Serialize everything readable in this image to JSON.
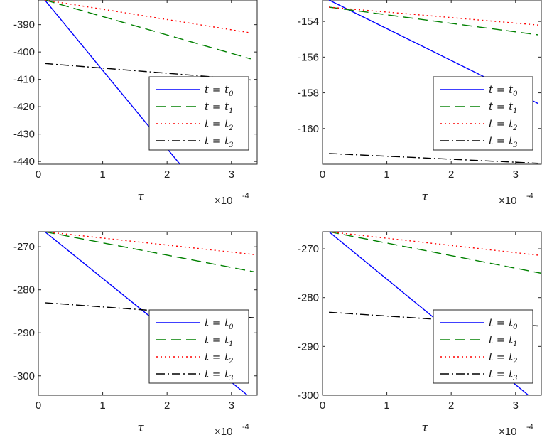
{
  "chart_data": [
    {
      "type": "line",
      "xlabel": "τ",
      "x_multiplier": "×10",
      "x_multiplier_exp": "-4",
      "xlim": [
        0,
        3.4
      ],
      "ylim": [
        -441,
        -381
      ],
      "xticks": [
        "0",
        "1",
        "2",
        "3"
      ],
      "yticks": [
        "-390",
        "-400",
        "-410",
        "-420",
        "-430",
        "-440"
      ],
      "legend_position": "lower-right",
      "series": [
        {
          "name": "t = t0",
          "base": "t = t",
          "sub": "0",
          "color": "#0000ff",
          "dash": "none",
          "x": [
            0.1,
            2.2
          ],
          "y": [
            -381,
            -441
          ]
        },
        {
          "name": "t = t1",
          "base": "t = t",
          "sub": "1",
          "color": "#008000",
          "dash": "14,7",
          "x": [
            0.1,
            3.3
          ],
          "y": [
            -381,
            -402.5
          ]
        },
        {
          "name": "t = t2",
          "base": "t = t",
          "sub": "2",
          "color": "#ff0000",
          "dash": "2,4",
          "x": [
            0.1,
            3.3
          ],
          "y": [
            -381,
            -393
          ]
        },
        {
          "name": "t = t3",
          "base": "t = t",
          "sub": "3",
          "color": "#000000",
          "dash": "12,4,2,4",
          "x": [
            0.1,
            3.3
          ],
          "y": [
            -404.2,
            -410.2
          ]
        }
      ]
    },
    {
      "type": "line",
      "xlabel": "τ",
      "x_multiplier": "×10",
      "x_multiplier_exp": "-4",
      "xlim": [
        0,
        3.4
      ],
      "ylim": [
        -162,
        -152.8
      ],
      "xticks": [
        "0",
        "1",
        "2",
        "3"
      ],
      "yticks": [
        "-154",
        "-156",
        "-158",
        "-160"
      ],
      "legend_position": "lower-right",
      "series": [
        {
          "name": "t = t0",
          "base": "t = t",
          "sub": "0",
          "color": "#0000ff",
          "dash": "none",
          "x": [
            0.1,
            3.35
          ],
          "y": [
            -152.8,
            -158.6
          ]
        },
        {
          "name": "t = t1",
          "base": "t = t",
          "sub": "1",
          "color": "#008000",
          "dash": "14,7",
          "x": [
            0.1,
            3.35
          ],
          "y": [
            -153.2,
            -154.75
          ]
        },
        {
          "name": "t = t2",
          "base": "t = t",
          "sub": "2",
          "color": "#ff0000",
          "dash": "2,4",
          "x": [
            0.1,
            3.35
          ],
          "y": [
            -153.2,
            -154.2
          ]
        },
        {
          "name": "t = t3",
          "base": "t = t",
          "sub": "3",
          "color": "#000000",
          "dash": "12,4,2,4",
          "x": [
            0.1,
            3.35
          ],
          "y": [
            -161.4,
            -161.95
          ]
        }
      ]
    },
    {
      "type": "line",
      "xlabel": "τ",
      "x_multiplier": "×10",
      "x_multiplier_exp": "-4",
      "xlim": [
        0,
        3.4
      ],
      "ylim": [
        -304.5,
        -266.5
      ],
      "xticks": [
        "0",
        "1",
        "2",
        "3"
      ],
      "yticks": [
        "-270",
        "-280",
        "-290",
        "-300"
      ],
      "legend_position": "lower-right",
      "series": [
        {
          "name": "t = t0",
          "base": "t = t",
          "sub": "0",
          "color": "#0000ff",
          "dash": "none",
          "x": [
            0.1,
            3.25
          ],
          "y": [
            -266.5,
            -304.5
          ]
        },
        {
          "name": "t = t1",
          "base": "t = t",
          "sub": "1",
          "color": "#008000",
          "dash": "14,7",
          "x": [
            0.1,
            3.35
          ],
          "y": [
            -266.5,
            -275.8
          ]
        },
        {
          "name": "t = t2",
          "base": "t = t",
          "sub": "2",
          "color": "#ff0000",
          "dash": "2,4",
          "x": [
            0.1,
            3.35
          ],
          "y": [
            -266.5,
            -271.8
          ]
        },
        {
          "name": "t = t3",
          "base": "t = t",
          "sub": "3",
          "color": "#000000",
          "dash": "12,4,2,4",
          "x": [
            0.1,
            3.35
          ],
          "y": [
            -283,
            -286.5
          ]
        }
      ]
    },
    {
      "type": "line",
      "xlabel": "τ",
      "x_multiplier": "×10",
      "x_multiplier_exp": "-4",
      "xlim": [
        0,
        3.4
      ],
      "ylim": [
        -300,
        -266.5
      ],
      "xticks": [
        "0",
        "1",
        "2",
        "3"
      ],
      "yticks": [
        "-270",
        "-280",
        "-290",
        "-300"
      ],
      "legend_position": "lower-right",
      "series": [
        {
          "name": "t = t0",
          "base": "t = t",
          "sub": "0",
          "color": "#0000ff",
          "dash": "none",
          "x": [
            0.1,
            3.2
          ],
          "y": [
            -266.5,
            -300
          ]
        },
        {
          "name": "t = t1",
          "base": "t = t",
          "sub": "1",
          "color": "#008000",
          "dash": "14,7",
          "x": [
            0.1,
            3.4
          ],
          "y": [
            -266.5,
            -275
          ]
        },
        {
          "name": "t = t2",
          "base": "t = t",
          "sub": "2",
          "color": "#ff0000",
          "dash": "2,4",
          "x": [
            0.1,
            3.35
          ],
          "y": [
            -266.5,
            -271.3
          ]
        },
        {
          "name": "t = t3",
          "base": "t = t",
          "sub": "3",
          "color": "#000000",
          "dash": "12,4,2,4",
          "x": [
            0.1,
            3.35
          ],
          "y": [
            -283,
            -285.8
          ]
        }
      ]
    }
  ]
}
